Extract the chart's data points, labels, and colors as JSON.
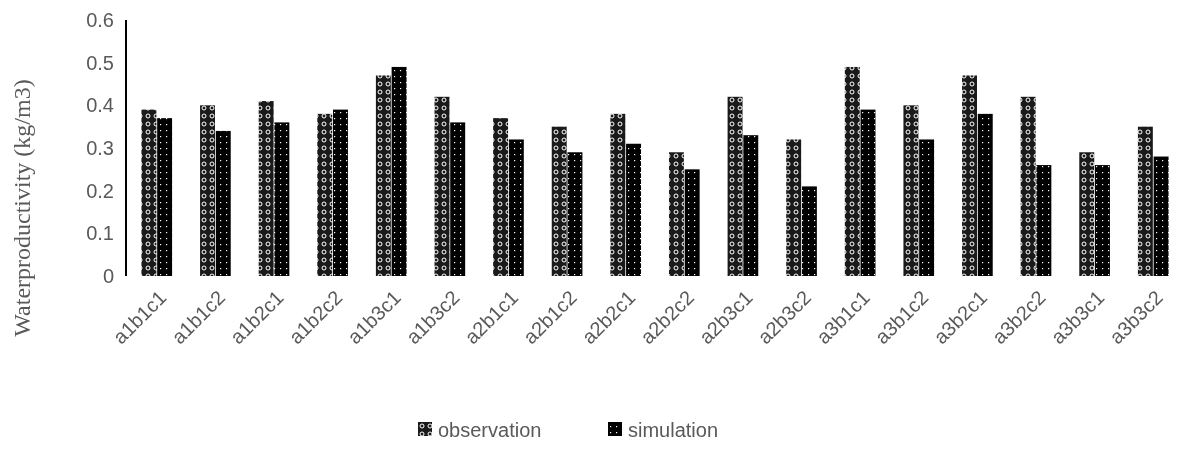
{
  "chart_data": {
    "type": "bar",
    "ylabel": "Waterproductivity (kg/m3)",
    "categories": [
      "a1b1c1",
      "a1b1c2",
      "a1b2c1",
      "a1b2c2",
      "a1b3c1",
      "a1b3c2",
      "a2b1c1",
      "a2b1c2",
      "a2b2c1",
      "a2b2c2",
      "a2b3c1",
      "a2b3c2",
      "a3b1c1",
      "a3b1c2",
      "a3b2c1",
      "a3b2c2",
      "a3b3c1",
      "a3b3c2"
    ],
    "series": [
      {
        "name": "observation",
        "color": "#1a1a1a",
        "values": [
          0.39,
          0.4,
          0.41,
          0.38,
          0.47,
          0.42,
          0.37,
          0.35,
          0.38,
          0.29,
          0.42,
          0.32,
          0.49,
          0.4,
          0.47,
          0.42,
          0.29,
          0.35
        ]
      },
      {
        "name": "simulation",
        "color": "#000000",
        "values": [
          0.37,
          0.34,
          0.36,
          0.39,
          0.49,
          0.36,
          0.32,
          0.29,
          0.31,
          0.25,
          0.33,
          0.21,
          0.39,
          0.32,
          0.38,
          0.26,
          0.26,
          0.28
        ]
      }
    ],
    "ylim": [
      0,
      0.6
    ],
    "yticks": [
      0,
      0.1,
      0.2,
      0.3,
      0.4,
      0.5,
      0.6
    ],
    "grid": false,
    "legend": "bottom"
  }
}
